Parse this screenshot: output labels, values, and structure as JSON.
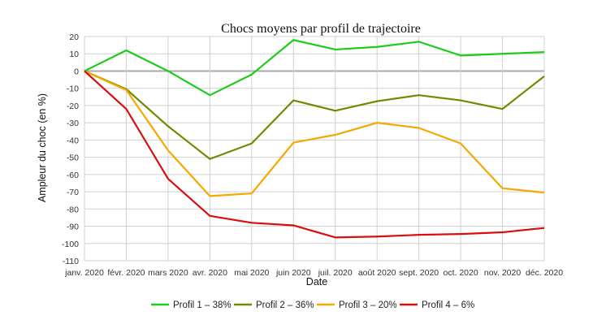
{
  "chart_data": {
    "type": "line",
    "title": "Chocs moyens par profil de trajectoire",
    "xlabel": "Date",
    "ylabel": "Ampleur du choc (en %)",
    "ylim": [
      -110,
      20
    ],
    "yticks": [
      20,
      10,
      0,
      -10,
      -20,
      -30,
      -40,
      -50,
      -60,
      -70,
      -80,
      -90,
      -100,
      -110
    ],
    "grid": true,
    "legend": "bottom",
    "categories": [
      "janv. 2020",
      "févr. 2020",
      "mars 2020",
      "avr. 2020",
      "mai 2020",
      "juin 2020",
      "juil. 2020",
      "août 2020",
      "sept. 2020",
      "oct. 2020",
      "nov. 2020",
      "déc. 2020"
    ],
    "series": [
      {
        "name": "Profil 1 – 38%",
        "color": "#1ccc1c",
        "values": [
          0,
          12,
          0,
          -14,
          -2,
          18,
          12.5,
          14,
          17,
          9,
          10,
          11
        ]
      },
      {
        "name": "Profil 2 – 36%",
        "color": "#738a00",
        "values": [
          0,
          -10.5,
          -32,
          -51,
          -42,
          -17,
          -23,
          -17.5,
          -14,
          -17,
          -22,
          -3
        ]
      },
      {
        "name": "Profil 3 – 20%",
        "color": "#f5a800",
        "values": [
          0,
          -11,
          -46,
          -72.5,
          -71,
          -41.5,
          -37,
          -30,
          -33,
          -42,
          -68,
          -70.5
        ]
      },
      {
        "name": "Profil 4 – 6%",
        "color": "#d80f0f",
        "values": [
          0,
          -22,
          -62.5,
          -84,
          -88,
          -89.5,
          -96.5,
          -96,
          -95,
          -94.5,
          -93.5,
          -91
        ]
      }
    ]
  }
}
